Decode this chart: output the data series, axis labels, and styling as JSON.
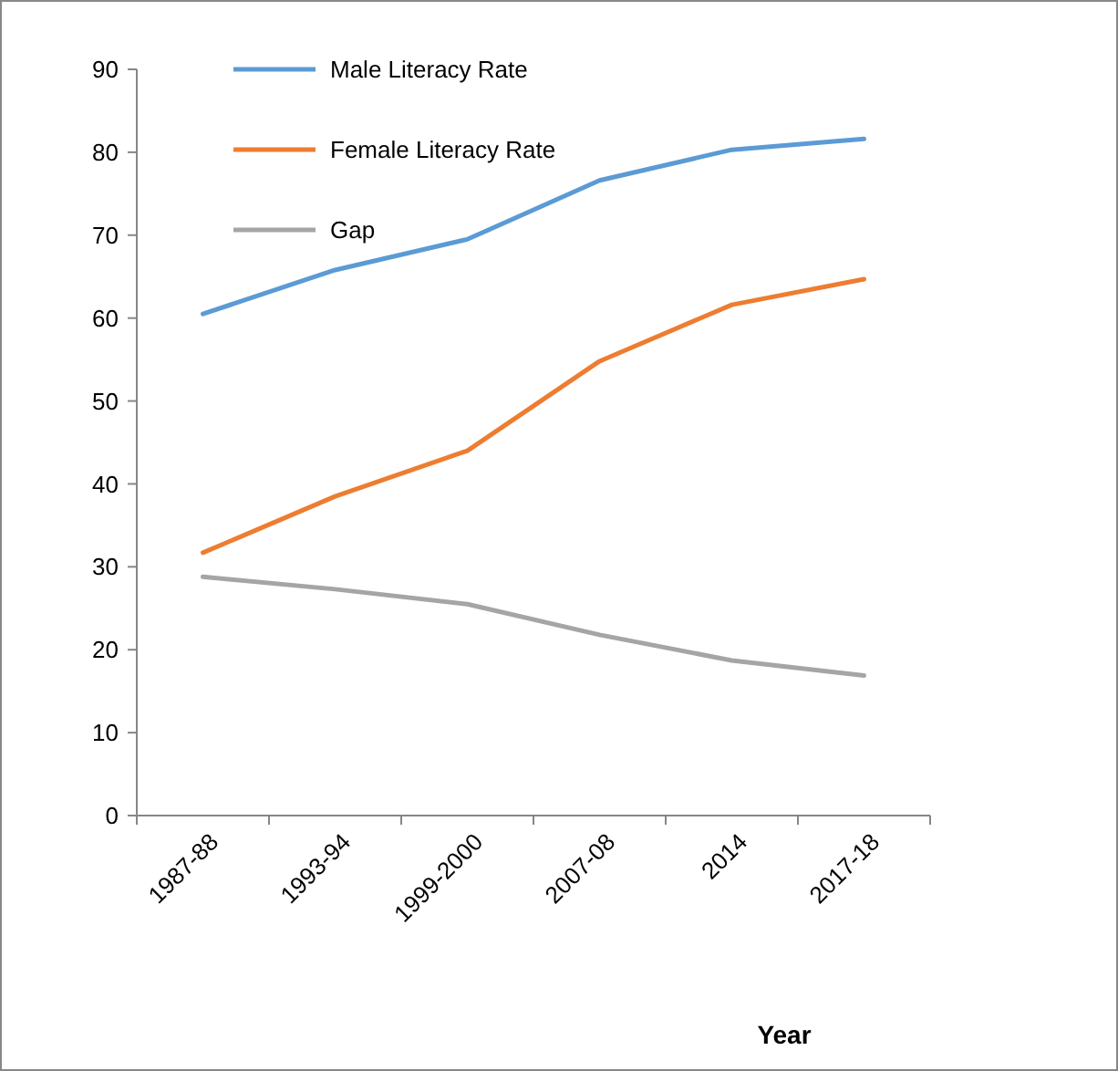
{
  "chart_data": {
    "type": "line",
    "xlabel": "Year",
    "categories": [
      "1987-88",
      "1993-94",
      "1999-2000",
      "2007-08",
      "2014",
      "2017-18"
    ],
    "series": [
      {
        "name": "Male Literacy Rate",
        "color": "#5b9bd5",
        "values": [
          60.5,
          65.8,
          69.5,
          76.6,
          80.3,
          81.6
        ]
      },
      {
        "name": "Female Literacy Rate",
        "color": "#ed7d31",
        "values": [
          31.7,
          38.5,
          44,
          54.8,
          61.6,
          64.7
        ]
      },
      {
        "name": "Gap",
        "color": "#a5a5a5",
        "values": [
          28.8,
          27.3,
          25.5,
          21.8,
          18.7,
          16.9
        ]
      }
    ],
    "ylim": [
      0,
      90
    ],
    "yticks": [
      0,
      10,
      20,
      30,
      40,
      50,
      60,
      70,
      80,
      90
    ],
    "grid": false,
    "legend": "top left",
    "marker": "none",
    "line_style": "solid"
  }
}
